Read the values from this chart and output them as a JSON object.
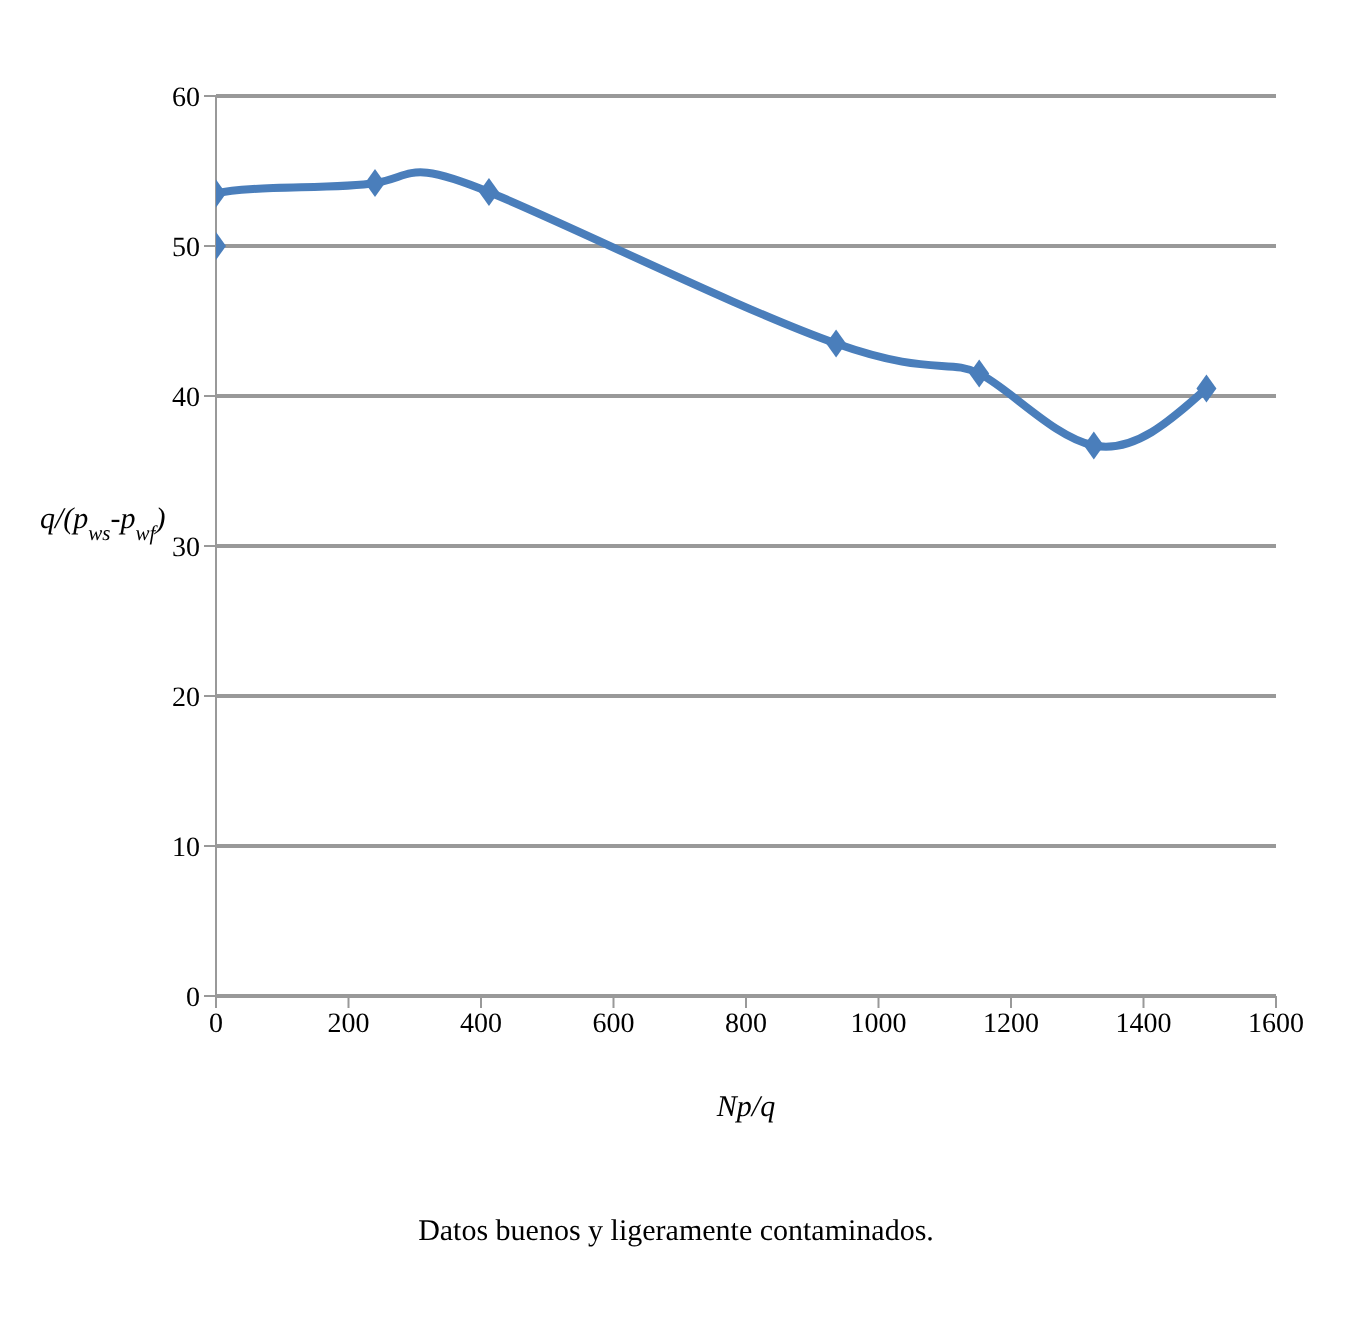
{
  "chart_data": {
    "type": "line",
    "xlabel": "Np/q",
    "ylabel": "q/(p$_{ws}$-p$_{wf}$)",
    "x": [
      0,
      0,
      240,
      412,
      936,
      1152,
      1325,
      1495
    ],
    "series": [
      {
        "color": "#4a7ebb",
        "values": [
          50,
          53.5,
          54.2,
          53.6,
          43.5,
          41.5,
          36.7,
          40.5
        ]
      }
    ],
    "xlim": [
      0,
      1600
    ],
    "xticks": [
      0,
      200,
      400,
      600,
      800,
      1000,
      1200,
      1400,
      1600
    ],
    "ylim": [
      0,
      60
    ],
    "yticks": [
      0,
      10,
      20,
      30,
      40,
      50,
      60
    ],
    "grid": "y",
    "marker": "diamond",
    "line_style": "solid",
    "annotations": [
      "Datos buenos y ligeramente contaminados."
    ]
  }
}
